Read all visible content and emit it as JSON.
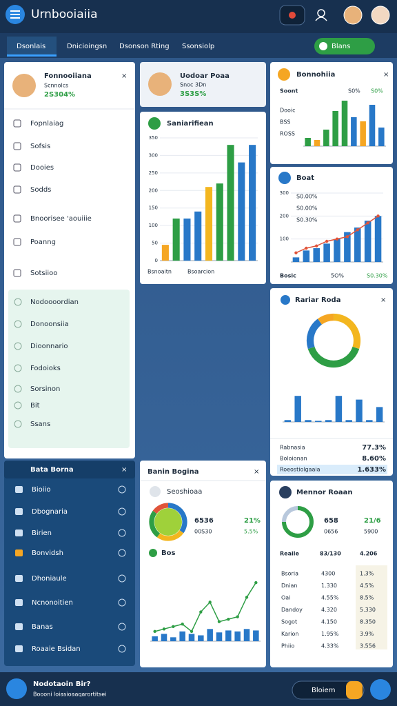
{
  "header": {
    "title": "Urnbooiaiia"
  },
  "tabs": [
    "Dsonlais",
    "Dnicioingsn",
    "Dsonson Rting",
    "Ssonsiolp"
  ],
  "action_button": "Blans",
  "sidebar": {
    "profile": {
      "name": "Fonnooiiana",
      "subtitle": "Scnnolcs",
      "value": "2S304%"
    },
    "menu": [
      "Fopnlaiag",
      "Sofsis",
      "Dooies",
      "Sodds",
      "Bnoorisee 'aouiiie",
      "Poanng",
      "Sotsiioo"
    ],
    "submenu": [
      "Nodoooordian",
      "Donoonsiia",
      "Dioonnario",
      "Fodoioks",
      "Sorsinon",
      "Bit",
      "Ssans"
    ]
  },
  "panel": {
    "title": "Bata Borna",
    "items": [
      "Bioiio",
      "Dbognaria",
      "Birien",
      "Bonvidsh",
      "Dhoniaule",
      "Ncnonoitien",
      "Banas",
      "Roaaie Bsidan"
    ]
  },
  "profile_card": {
    "name": "Uodoar Poaa",
    "subtitle": "Snoc 3Dn",
    "value": "3S3S%"
  },
  "chart_card": {
    "title": "Saniarifiean",
    "footer": [
      "Bsnoaitn",
      "Bsoarcion"
    ],
    "chart": {
      "type": "bar",
      "values": [
        45,
        120,
        120,
        140,
        210,
        220,
        330,
        280,
        330
      ],
      "colors": [
        "#f5a623",
        "#2e9e45",
        "#2878c8",
        "#2878c8",
        "#f3b61f",
        "#2e9e45",
        "#2e9e45",
        "#2878c8",
        "#2878c8"
      ],
      "ylim": [
        0,
        350
      ],
      "yticks": [
        0,
        50,
        100,
        150,
        200,
        250,
        300,
        350
      ]
    }
  },
  "stats_card": {
    "title": "Bonnohiia",
    "label": "Soont",
    "legend": [
      "S0%",
      "S0%"
    ],
    "rows": [
      "Dooic",
      "BSS",
      "ROSS"
    ],
    "chart": {
      "type": "bar",
      "values": [
        20,
        15,
        40,
        85,
        110,
        70,
        60,
        100,
        45
      ],
      "colors": [
        "#2e9e45",
        "#f5a623",
        "#2e9e45",
        "#2e9e45",
        "#2e9e45",
        "#2878c8",
        "#f5a623",
        "#2878c8",
        "#2878c8"
      ],
      "ylim": [
        0,
        120
      ]
    }
  },
  "boat_card": {
    "title": "Boat",
    "legend": [
      "S0.00%",
      "S0.00%",
      "S0.30%"
    ],
    "footer": [
      "Bosic",
      "5O%",
      "S0.30%"
    ],
    "chart": {
      "type": "bar",
      "values": [
        20,
        50,
        60,
        80,
        100,
        130,
        150,
        180,
        200
      ],
      "line": [
        40,
        60,
        70,
        90,
        100,
        110,
        140,
        170,
        200
      ],
      "color": "#2878c8",
      "line_color": "#e0543a",
      "ylim": [
        0,
        300
      ],
      "yticks": [
        100,
        200,
        300
      ]
    }
  },
  "radar_card": {
    "title": "Rariar Roda",
    "donut": {
      "type": "donut",
      "values": [
        30,
        40,
        20,
        10
      ],
      "colors": [
        "#f3b61f",
        "#2e9e45",
        "#2878c8",
        "#f5a623"
      ]
    },
    "chart": {
      "type": "bar",
      "values": [
        5,
        70,
        5,
        3,
        5,
        70,
        5,
        60,
        5,
        40
      ],
      "color": "#2878c8",
      "ylim": [
        0,
        100
      ]
    },
    "rows": [
      {
        "label": "Rabnasia",
        "value": "77.3%"
      },
      {
        "label": "Boloionan",
        "value": "8.60%"
      },
      {
        "label": "Roeostiolgaaia",
        "value": "1.633%"
      }
    ]
  },
  "banin_card": {
    "title": "Banin Bogina",
    "subtitle": "Seoshioaa",
    "stats": [
      "6536",
      "21%",
      "00S30",
      "5.5%"
    ],
    "section": "Bos",
    "donut": {
      "type": "donut",
      "values": [
        35,
        25,
        25,
        15
      ],
      "colors": [
        "#2878c8",
        "#f3b61f",
        "#2e9e45",
        "#e0543a"
      ]
    },
    "chart": {
      "type": "bar",
      "values": [
        10,
        15,
        8,
        20,
        15,
        12,
        25,
        18,
        22,
        20,
        25,
        22
      ],
      "line": [
        20,
        25,
        30,
        35,
        20,
        60,
        80,
        40,
        45,
        50,
        90,
        120
      ],
      "color": "#2878c8",
      "line_color": "#2e9e45",
      "ylim": [
        0,
        130
      ]
    }
  },
  "mennor_card": {
    "title": "Mennor Roaan",
    "stats": [
      "658",
      "21/6",
      "0656",
      "5900"
    ],
    "header": [
      "Reaile",
      "83/130",
      "4.206"
    ],
    "donut": {
      "type": "donut",
      "values": [
        75,
        25
      ],
      "colors": [
        "#2e9e45",
        "#b8c8dc"
      ]
    },
    "rows": [
      [
        "Bsoria",
        "4300",
        "1.3%"
      ],
      [
        "Dnian",
        "1.330",
        "4.5%"
      ],
      [
        "Oai",
        "4.55%",
        "8.5%"
      ],
      [
        "Dandoy",
        "4.320",
        "5.330"
      ],
      [
        "Sogot",
        "4.150",
        "8.350"
      ],
      [
        "Karion",
        "1.95%",
        "3.9%"
      ],
      [
        "Phiio",
        "4.33%",
        "3.556"
      ]
    ]
  },
  "footer": {
    "title": "Nodotaoin Bir?",
    "subtitle": "Boooni loiasioaaqarortitsei",
    "button": "Bloiem"
  }
}
